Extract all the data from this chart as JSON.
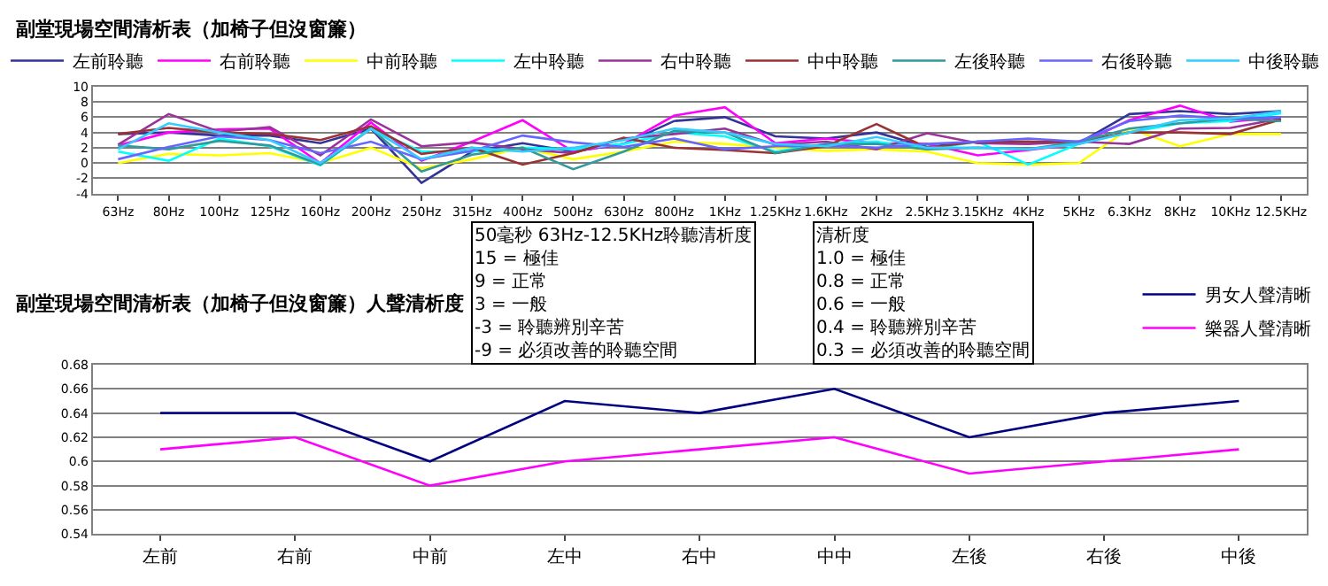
{
  "chart_data": [
    {
      "type": "line",
      "title": "副堂現場空間清析表（加椅子但沒窗簾）",
      "categories": [
        "63Hz",
        "80Hz",
        "100Hz",
        "125Hz",
        "160Hz",
        "200Hz",
        "250Hz",
        "315Hz",
        "400Hz",
        "500Hz",
        "630Hz",
        "800Hz",
        "1KHz",
        "1.25KHz",
        "1.6KHz",
        "2KHz",
        "2.5KHz",
        "3.15KHz",
        "4KHz",
        "5KHz",
        "6.3KHz",
        "8KHz",
        "10KHz",
        "12.5KHz"
      ],
      "series": [
        {
          "name": "左前聆聽",
          "color": "#333399",
          "values": [
            3.8,
            4,
            3.6,
            3.6,
            2.6,
            4.5,
            -2.6,
            1.5,
            2.6,
            1.5,
            2.5,
            5.5,
            6,
            3.5,
            3.2,
            4,
            2.1,
            2.8,
            2.8,
            2.6,
            6.4,
            6.8,
            6.4,
            6.8
          ]
        },
        {
          "name": "右前聆聽",
          "color": "#ff00ff",
          "values": [
            2.3,
            4,
            4.4,
            4.5,
            0,
            5.3,
            0.3,
            2.8,
            5.6,
            1.5,
            2.5,
            6.2,
            7.3,
            2.6,
            3.2,
            2.6,
            2.5,
            1,
            1.7,
            2.5,
            5.6,
            7.5,
            5.4,
            6
          ]
        },
        {
          "name": "中前聆聽",
          "color": "#ffff00",
          "values": [
            0,
            1.2,
            1,
            1.3,
            0,
            2,
            -0.7,
            0.5,
            2,
            0.5,
            1.5,
            2.8,
            2.5,
            2,
            1.6,
            1.8,
            1.5,
            0,
            -0.2,
            0,
            4.5,
            2.2,
            3.8,
            3.8
          ]
        },
        {
          "name": "左中聆聽",
          "color": "#00ffff",
          "values": [
            1.5,
            0.3,
            3.2,
            2.2,
            -0.3,
            4.5,
            1.5,
            1.5,
            2,
            1.8,
            2.5,
            4,
            3.5,
            1.5,
            2.5,
            2.8,
            1.8,
            2.8,
            -0.2,
            2.5,
            4,
            5.2,
            5.5,
            6.5
          ]
        },
        {
          "name": "右中聆聽",
          "color": "#993399",
          "values": [
            2.4,
            6.4,
            4.1,
            4.7,
            1,
            5.7,
            2.2,
            2.7,
            1.8,
            1.3,
            3.2,
            3.8,
            4.5,
            2.4,
            2.8,
            1.8,
            3.9,
            2.6,
            2.5,
            2.8,
            2.5,
            4.5,
            4.6,
            5.8
          ]
        },
        {
          "name": "中中聆聽",
          "color": "#993333",
          "values": [
            3.8,
            4.6,
            4,
            3.8,
            3,
            4.8,
            1.2,
            2,
            -0.2,
            1.3,
            3.3,
            2,
            1.7,
            1.3,
            2.2,
            5.1,
            2,
            2.8,
            2.8,
            2.8,
            4,
            4,
            3.8,
            5.7
          ]
        },
        {
          "name": "左後聆聽",
          "color": "#339999",
          "values": [
            2.3,
            1.8,
            2.9,
            2.3,
            -0.2,
            4.5,
            -1.1,
            1.1,
            2,
            -0.8,
            1.5,
            4.2,
            4,
            1.3,
            2.5,
            2.5,
            1.8,
            2,
            1.8,
            2.8,
            4.5,
            5.2,
            5.8,
            5.5
          ]
        },
        {
          "name": "右後聆聽",
          "color": "#6666ff",
          "values": [
            0.5,
            2.1,
            3.5,
            3,
            1.3,
            2.8,
            0.5,
            1.6,
            3.6,
            2.7,
            2.1,
            3.2,
            1.8,
            2.2,
            2.3,
            2,
            2.5,
            2.8,
            3.2,
            2.8,
            5.5,
            6.2,
            5.8,
            6
          ]
        },
        {
          "name": "中後聆聽",
          "color": "#33ccff",
          "values": [
            1.8,
            5.2,
            4,
            3,
            0,
            4.5,
            0.5,
            2,
            1.5,
            2,
            3,
            4.5,
            4,
            2.5,
            2.2,
            3.4,
            2,
            2,
            1.8,
            2.5,
            4,
            5.6,
            5.8,
            6.8
          ]
        }
      ],
      "ylim": [
        -4,
        10
      ],
      "yticks": [
        -4,
        -2,
        0,
        2,
        4,
        6,
        8,
        10
      ],
      "grid": "y",
      "legend": "top",
      "marker": "none",
      "line_style": "solid",
      "annotations": [
        "50毫秒 63Hz-12.5KHz聆聽清析度\n15 = 極佳\n9 = 正常\n3 = 一般\n-3 = 聆聽辨別辛苦\n-9 = 必須改善的聆聽空間"
      ]
    },
    {
      "type": "line",
      "title": "副堂現場空間清析表（加椅子但沒窗簾）人聲清析度",
      "categories": [
        "左前",
        "右前",
        "中前",
        "左中",
        "右中",
        "中中",
        "左後",
        "右後",
        "中後"
      ],
      "series": [
        {
          "name": "男女人聲清晰",
          "color": "#000080",
          "values": [
            0.64,
            0.64,
            0.6,
            0.65,
            0.64,
            0.66,
            0.62,
            0.64,
            0.65
          ]
        },
        {
          "name": "樂器人聲清晰",
          "color": "#ff00ff",
          "values": [
            0.61,
            0.62,
            0.58,
            0.6,
            0.61,
            0.62,
            0.59,
            0.6,
            0.61
          ]
        }
      ],
      "ylim": [
        0.54,
        0.68
      ],
      "yticks": [
        0.54,
        0.56,
        0.58,
        {
          "value": 0.6,
          "label": "0.6"
        },
        0.62,
        0.64,
        0.66,
        0.68
      ],
      "grid": "y",
      "legend": "top right",
      "marker": "none",
      "line_style": "solid",
      "annotations": [
        "清析度\n1.0 = 極佳\n0.8 = 正常\n0.6 = 一般\n0.4 = 聆聽辨別辛苦\n0.3 = 必須改善的聆聽空間"
      ]
    }
  ]
}
